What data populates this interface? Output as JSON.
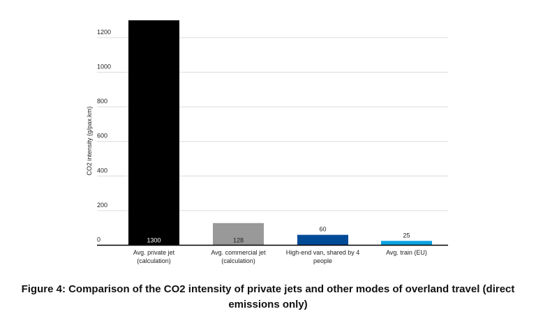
{
  "chart_data": {
    "type": "bar",
    "title": "Figure 4: Comparison of the CO2 intensity of private jets and other modes of overland travel (direct emissions only)",
    "ylabel": "CO2 intensity (g/pax.km)",
    "xlabel": "",
    "ylim": [
      0,
      1300
    ],
    "yticks": [
      0,
      200,
      400,
      600,
      800,
      1000,
      1200
    ],
    "grid": true,
    "categories": [
      [
        "Avg. private jet",
        "(calculation)"
      ],
      [
        "Avg. commercial jet",
        "(calculation)"
      ],
      [
        "High-end van, shared by 4",
        "people"
      ],
      [
        "Avg. train (EU)"
      ]
    ],
    "values": [
      1300,
      128,
      60,
      25
    ],
    "data_labels": [
      "1300",
      "128",
      "60",
      "25"
    ],
    "label_positions": [
      "inside-base",
      "inside-base",
      "above",
      "above"
    ],
    "colors": [
      "#000000",
      "#999999",
      "#004b98",
      "#0aa2e2"
    ]
  }
}
